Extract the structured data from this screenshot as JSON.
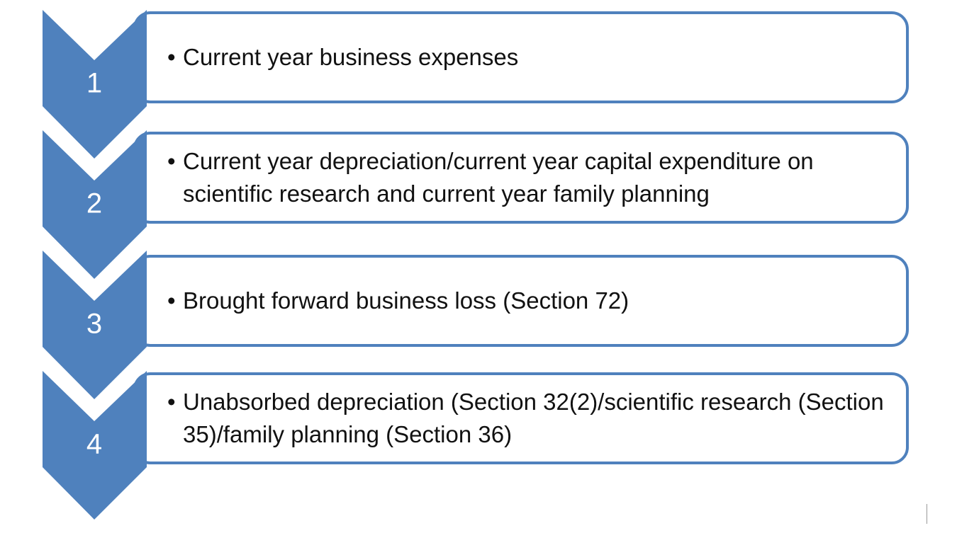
{
  "steps": [
    {
      "number": "1",
      "text": "Current year business expenses"
    },
    {
      "number": "2",
      "text": "Current year depreciation/current year capital expenditure on scientific research and current year family planning"
    },
    {
      "number": "3",
      "text": "Brought forward business loss (Section 72)"
    },
    {
      "number": "4",
      "text": "Unabsorbed depreciation (Section 32(2)/scientific research (Section 35)/family planning (Section 36)"
    }
  ]
}
